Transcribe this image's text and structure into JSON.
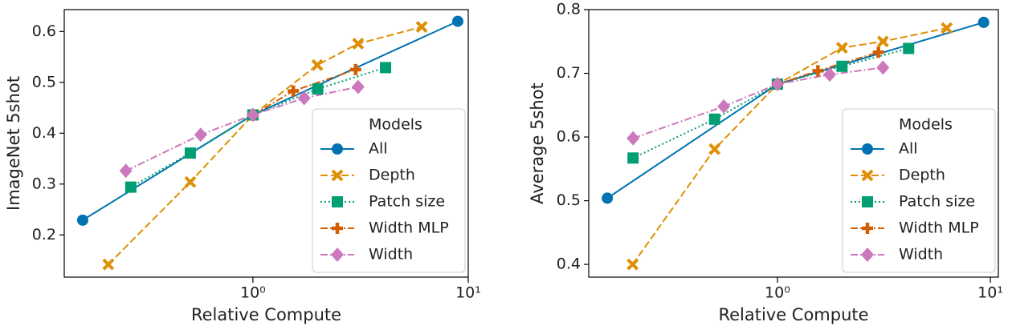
{
  "chart_data": [
    {
      "type": "line",
      "xlabel": "Relative Compute",
      "ylabel": "ImageNet 5shot",
      "xscale": "log",
      "xlim": [
        0.133,
        10.0
      ],
      "xticks": [
        {
          "value": 1,
          "label": "10⁰"
        },
        {
          "value": 10,
          "label": "10¹"
        }
      ],
      "ylim": [
        0.117,
        0.643
      ],
      "yticks": [
        0.2,
        0.3,
        0.4,
        0.5,
        0.6
      ],
      "legend_title": "Models",
      "legend": "lower right",
      "series": [
        {
          "name": "All",
          "color": "#0173b2",
          "marker": "circle",
          "dash": "solid",
          "x": [
            0.162,
            1.0,
            8.94
          ],
          "values": [
            0.229,
            0.436,
            0.62
          ]
        },
        {
          "name": "Depth",
          "color": "#de8f05",
          "marker": "x",
          "dash": "dashed",
          "x": [
            0.213,
            0.512,
            1.0,
            1.99,
            3.08,
            6.08
          ],
          "values": [
            0.142,
            0.304,
            0.436,
            0.534,
            0.576,
            0.609
          ]
        },
        {
          "name": "Patch size",
          "color": "#029e73",
          "marker": "square",
          "dash": "dotted",
          "x": [
            0.271,
            0.512,
            1.0,
            2.0,
            4.13
          ],
          "values": [
            0.294,
            0.361,
            0.436,
            0.487,
            0.529
          ]
        },
        {
          "name": "Width MLP",
          "color": "#d55e00",
          "marker": "plus",
          "dash": "dashdot",
          "x": [
            1.0,
            1.54,
            3.0
          ],
          "values": [
            0.436,
            0.483,
            0.525
          ]
        },
        {
          "name": "Width",
          "color": "#cc78bc",
          "marker": "diamond",
          "dash": "dashdot",
          "x": [
            0.257,
            0.572,
            1.0,
            1.73,
            3.08
          ],
          "values": [
            0.326,
            0.397,
            0.436,
            0.469,
            0.491
          ]
        }
      ]
    },
    {
      "type": "line",
      "xlabel": "Relative Compute",
      "ylabel": "Average 5shot",
      "xscale": "log",
      "xlim": [
        0.13,
        10.9
      ],
      "xticks": [
        {
          "value": 1,
          "label": "10⁰"
        },
        {
          "value": 10,
          "label": "10¹"
        }
      ],
      "ylim": [
        0.38,
        0.8
      ],
      "yticks": [
        0.4,
        0.5,
        0.6,
        0.7,
        0.8
      ],
      "legend_title": "Models",
      "legend": "lower right",
      "series": [
        {
          "name": "All",
          "color": "#0173b2",
          "marker": "circle",
          "dash": "solid",
          "x": [
            0.159,
            1.0,
            9.3
          ],
          "values": [
            0.504,
            0.683,
            0.78
          ]
        },
        {
          "name": "Depth",
          "color": "#de8f05",
          "marker": "x",
          "dash": "dashed",
          "x": [
            0.209,
            0.507,
            1.0,
            2.01,
            3.13,
            6.24
          ],
          "values": [
            0.4,
            0.581,
            0.683,
            0.74,
            0.75,
            0.771
          ]
        },
        {
          "name": "Patch size",
          "color": "#029e73",
          "marker": "square",
          "dash": "dotted",
          "x": [
            0.21,
            0.507,
            1.0,
            2.01,
            4.13
          ],
          "values": [
            0.567,
            0.628,
            0.683,
            0.711,
            0.739
          ]
        },
        {
          "name": "Width MLP",
          "color": "#d55e00",
          "marker": "plus",
          "dash": "dashdot",
          "x": [
            1.0,
            1.55,
            2.98
          ],
          "values": [
            0.683,
            0.704,
            0.733
          ]
        },
        {
          "name": "Width",
          "color": "#cc78bc",
          "marker": "diamond",
          "dash": "dashdot",
          "x": [
            0.21,
            0.56,
            1.0,
            1.76,
            3.13
          ],
          "values": [
            0.598,
            0.648,
            0.683,
            0.698,
            0.709
          ]
        }
      ]
    }
  ]
}
